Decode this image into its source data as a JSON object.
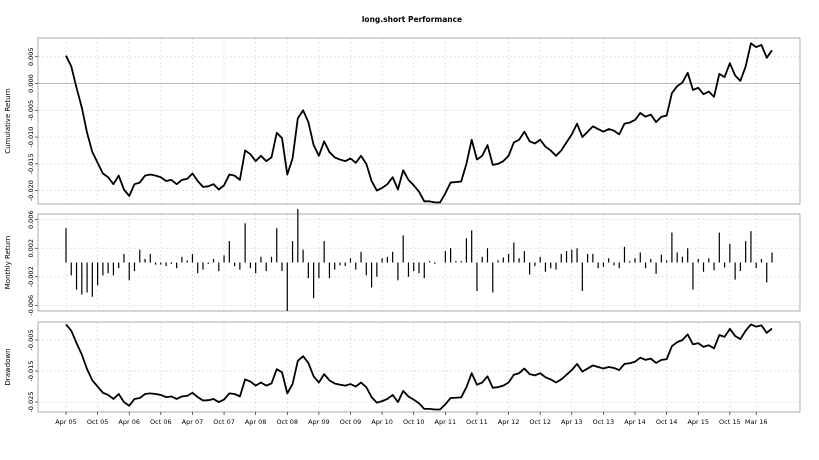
{
  "chart_data": {
    "type": "line",
    "title": "long.short Performance",
    "x_tick_labels": [
      "Apr 05",
      "Oct 05",
      "Apr 06",
      "Oct 06",
      "Apr 07",
      "Oct 07",
      "Apr 08",
      "Oct 08",
      "Apr 09",
      "Oct 09",
      "Apr 10",
      "Oct 10",
      "Apr 11",
      "Oct 11",
      "Apr 12",
      "Oct 12",
      "Apr 13",
      "Oct 13",
      "Apr 14",
      "Oct 14",
      "Apr 15",
      "Oct 15",
      "Mar 16"
    ],
    "x_tick_months": [
      0,
      6,
      12,
      18,
      24,
      30,
      36,
      42,
      48,
      54,
      60,
      66,
      72,
      78,
      84,
      90,
      96,
      102,
      108,
      114,
      120,
      126,
      131
    ],
    "panels": [
      {
        "id": "cumulative",
        "ylabel": "Cumulative Return",
        "type": "line",
        "ylim": [
          -0.0225,
          0.0085
        ],
        "yticks": [
          0.005,
          0.0,
          -0.005,
          -0.01,
          -0.015,
          -0.02
        ],
        "ytick_labels": [
          "0.005",
          "0.000",
          "-0.005",
          "-0.010",
          "-0.015",
          "-0.020"
        ],
        "reference_line": 0,
        "values": [
          0.0052,
          0.0032,
          -0.0008,
          -0.0045,
          -0.0092,
          -0.0128,
          -0.0148,
          -0.0168,
          -0.0175,
          -0.0188,
          -0.0172,
          -0.0198,
          -0.021,
          -0.0188,
          -0.0185,
          -0.0172,
          -0.017,
          -0.0172,
          -0.0175,
          -0.0182,
          -0.018,
          -0.0188,
          -0.018,
          -0.0178,
          -0.0168,
          -0.0182,
          -0.0193,
          -0.0192,
          -0.0188,
          -0.0198,
          -0.019,
          -0.017,
          -0.0172,
          -0.018,
          -0.0125,
          -0.0132,
          -0.0145,
          -0.0135,
          -0.0145,
          -0.0138,
          -0.0092,
          -0.0102,
          -0.017,
          -0.014,
          -0.0065,
          -0.005,
          -0.0072,
          -0.0115,
          -0.0135,
          -0.0108,
          -0.0128,
          -0.0138,
          -0.0142,
          -0.0145,
          -0.014,
          -0.0148,
          -0.0135,
          -0.015,
          -0.0182,
          -0.02,
          -0.0195,
          -0.0188,
          -0.0175,
          -0.0198,
          -0.0162,
          -0.018,
          -0.019,
          -0.0202,
          -0.022,
          -0.022,
          -0.0222,
          -0.0222,
          -0.0205,
          -0.0185,
          -0.0184,
          -0.0183,
          -0.015,
          -0.0105,
          -0.0142,
          -0.0135,
          -0.0115,
          -0.0152,
          -0.015,
          -0.0145,
          -0.0135,
          -0.011,
          -0.0105,
          -0.009,
          -0.0108,
          -0.0112,
          -0.0105,
          -0.0118,
          -0.0125,
          -0.0135,
          -0.0125,
          -0.011,
          -0.0095,
          -0.0075,
          -0.01,
          -0.009,
          -0.008,
          -0.0085,
          -0.009,
          -0.0085,
          -0.0088,
          -0.0095,
          -0.0075,
          -0.0073,
          -0.0068,
          -0.0055,
          -0.0062,
          -0.0058,
          -0.0072,
          -0.0062,
          -0.006,
          -0.0018,
          -0.0005,
          0.0002,
          0.002,
          -0.0012,
          -0.0008,
          -0.002,
          -0.0015,
          -0.0025,
          0.0018,
          0.0012,
          0.0038,
          0.0015,
          0.0005,
          0.0032,
          0.0075,
          0.0068,
          0.0072,
          0.0048,
          0.0062
        ]
      },
      {
        "id": "monthly",
        "ylabel": "Monthly Return",
        "type": "bar",
        "ylim": [
          -0.0068,
          0.0068
        ],
        "yticks": [
          0.006,
          0.002,
          -0.002,
          -0.006
        ],
        "ytick_labels": [
          "0.006",
          "0.002",
          "-0.002",
          "-0.006"
        ],
        "values": [
          0.0048,
          -0.0018,
          -0.0038,
          -0.0045,
          -0.0042,
          -0.0048,
          -0.0032,
          -0.0018,
          -0.0015,
          -0.0018,
          -0.0008,
          0.0012,
          -0.0025,
          -0.0012,
          0.0018,
          0.0005,
          0.0012,
          -0.0003,
          -0.0003,
          -0.0005,
          -0.0002,
          -0.0008,
          0.0008,
          0.0003,
          0.0012,
          -0.0015,
          -0.001,
          -0.0002,
          0.0005,
          -0.0012,
          0.001,
          0.003,
          -0.0005,
          -0.001,
          0.0055,
          -0.0008,
          -0.0015,
          0.0008,
          -0.0012,
          0.0008,
          0.0048,
          -0.0012,
          -0.0068,
          0.003,
          0.0075,
          0.0018,
          -0.0022,
          -0.005,
          -0.0022,
          0.003,
          -0.0022,
          -0.001,
          -0.0004,
          -0.0005,
          0.0006,
          -0.001,
          0.0015,
          -0.0018,
          -0.0035,
          -0.002,
          0.0006,
          0.0008,
          0.0015,
          -0.0025,
          0.0038,
          -0.002,
          -0.0012,
          -0.0015,
          -0.0022,
          0.0002,
          -0.0002,
          0.0,
          0.0016,
          0.002,
          0.0002,
          0.0002,
          0.0034,
          0.0045,
          -0.004,
          0.0008,
          0.002,
          -0.0042,
          0.0003,
          0.0007,
          0.0012,
          0.0028,
          0.0006,
          0.0016,
          -0.0017,
          -0.0005,
          0.0008,
          -0.0013,
          -0.0008,
          -0.001,
          0.0012,
          0.0016,
          0.0018,
          0.002,
          -0.004,
          0.0012,
          0.0012,
          -0.0008,
          -0.0006,
          0.0006,
          -0.0004,
          -0.0008,
          0.0022,
          0.0002,
          0.0006,
          0.0014,
          -0.0008,
          0.0005,
          -0.0016,
          0.0011,
          0.0003,
          0.0042,
          0.0014,
          0.0008,
          0.002,
          -0.0038,
          0.0005,
          -0.0013,
          0.0006,
          -0.0011,
          0.0042,
          -0.0007,
          0.0026,
          -0.0024,
          -0.0012,
          0.003,
          0.0044,
          -0.0008,
          0.0005,
          -0.0028,
          0.0014
        ]
      },
      {
        "id": "drawdown",
        "ylabel": "Drawdown",
        "type": "line",
        "ylim": [
          -0.0282,
          0.0008
        ],
        "yticks": [
          -0.005,
          -0.015,
          -0.025
        ],
        "ytick_labels": [
          "-0.005",
          "-0.015",
          "-0.025"
        ],
        "values": [
          0.0,
          -0.002,
          -0.006,
          -0.0097,
          -0.0144,
          -0.018,
          -0.02,
          -0.022,
          -0.0227,
          -0.024,
          -0.0224,
          -0.025,
          -0.0262,
          -0.024,
          -0.0237,
          -0.0224,
          -0.0222,
          -0.0224,
          -0.0227,
          -0.0234,
          -0.0232,
          -0.024,
          -0.0232,
          -0.023,
          -0.022,
          -0.0234,
          -0.0245,
          -0.0244,
          -0.024,
          -0.025,
          -0.0242,
          -0.0222,
          -0.0224,
          -0.0232,
          -0.0177,
          -0.0184,
          -0.0197,
          -0.0187,
          -0.0197,
          -0.019,
          -0.0144,
          -0.0154,
          -0.0222,
          -0.0192,
          -0.0117,
          -0.0102,
          -0.0124,
          -0.0167,
          -0.0187,
          -0.016,
          -0.018,
          -0.019,
          -0.0194,
          -0.0197,
          -0.0192,
          -0.02,
          -0.0187,
          -0.0202,
          -0.0234,
          -0.0252,
          -0.0247,
          -0.024,
          -0.0227,
          -0.025,
          -0.0214,
          -0.0232,
          -0.0242,
          -0.0254,
          -0.0272,
          -0.0272,
          -0.0274,
          -0.0274,
          -0.0257,
          -0.0237,
          -0.0236,
          -0.0235,
          -0.0202,
          -0.0157,
          -0.0194,
          -0.0187,
          -0.0167,
          -0.0204,
          -0.0202,
          -0.0197,
          -0.0187,
          -0.0162,
          -0.0157,
          -0.0142,
          -0.016,
          -0.0164,
          -0.0157,
          -0.017,
          -0.0177,
          -0.0187,
          -0.0177,
          -0.0162,
          -0.0147,
          -0.0127,
          -0.0152,
          -0.0142,
          -0.0132,
          -0.0137,
          -0.0142,
          -0.0137,
          -0.014,
          -0.0147,
          -0.0127,
          -0.0125,
          -0.012,
          -0.0107,
          -0.0114,
          -0.011,
          -0.0124,
          -0.0114,
          -0.0112,
          -0.007,
          -0.0057,
          -0.005,
          -0.0032,
          -0.0064,
          -0.006,
          -0.0072,
          -0.0067,
          -0.0077,
          -0.0034,
          -0.004,
          -0.0014,
          -0.0037,
          -0.0047,
          -0.002,
          0.0,
          -0.0007,
          -0.0003,
          -0.0027,
          -0.0013
        ]
      }
    ]
  }
}
